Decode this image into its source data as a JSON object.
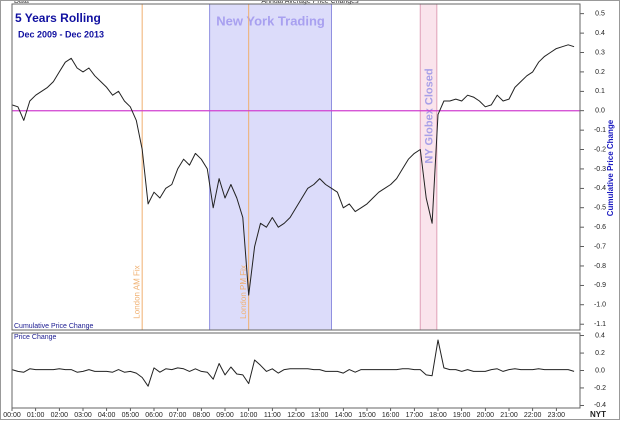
{
  "chart_data": [
    {
      "type": "line",
      "header_left": "Data",
      "header_center": "Annual Average Price Changes",
      "title": "5 Years Rolling",
      "subtitle": "Dec 2009 - Dec 2013",
      "y_label": "Cumulative Price Change",
      "x": [
        0,
        0.25,
        0.5,
        0.75,
        1,
        1.25,
        1.5,
        1.75,
        2,
        2.25,
        2.5,
        2.75,
        3,
        3.25,
        3.5,
        3.75,
        4,
        4.25,
        4.5,
        4.75,
        5,
        5.25,
        5.5,
        5.75,
        6,
        6.25,
        6.5,
        6.75,
        7,
        7.25,
        7.5,
        7.75,
        8,
        8.25,
        8.5,
        8.75,
        9,
        9.25,
        9.5,
        9.75,
        10,
        10.25,
        10.5,
        10.75,
        11,
        11.25,
        11.5,
        11.75,
        12,
        12.25,
        12.5,
        12.75,
        13,
        13.25,
        13.5,
        13.75,
        14,
        14.25,
        14.5,
        14.75,
        15,
        15.25,
        15.5,
        15.75,
        16,
        16.25,
        16.5,
        16.75,
        17,
        17.25,
        17.5,
        17.75,
        18,
        18.25,
        18.5,
        18.75,
        19,
        19.25,
        19.5,
        19.75,
        20,
        20.25,
        20.5,
        20.75,
        21,
        21.25,
        21.5,
        21.75,
        22,
        22.25,
        22.5,
        22.75,
        23,
        23.25,
        23.5,
        23.75
      ],
      "values": [
        0.03,
        0.02,
        -0.05,
        0.05,
        0.08,
        0.1,
        0.12,
        0.15,
        0.2,
        0.25,
        0.27,
        0.22,
        0.2,
        0.22,
        0.18,
        0.15,
        0.12,
        0.08,
        0.1,
        0.05,
        0.02,
        -0.05,
        -0.2,
        -0.48,
        -0.42,
        -0.45,
        -0.4,
        -0.38,
        -0.3,
        -0.25,
        -0.28,
        -0.22,
        -0.25,
        -0.3,
        -0.5,
        -0.35,
        -0.45,
        -0.38,
        -0.45,
        -0.55,
        -0.95,
        -0.7,
        -0.58,
        -0.6,
        -0.55,
        -0.6,
        -0.58,
        -0.55,
        -0.5,
        -0.45,
        -0.4,
        -0.38,
        -0.35,
        -0.38,
        -0.4,
        -0.42,
        -0.5,
        -0.48,
        -0.52,
        -0.5,
        -0.48,
        -0.45,
        -0.42,
        -0.4,
        -0.38,
        -0.35,
        -0.3,
        -0.25,
        -0.22,
        -0.2,
        -0.45,
        -0.58,
        -0.02,
        0.05,
        0.05,
        0.06,
        0.05,
        0.08,
        0.07,
        0.05,
        0.02,
        0.03,
        0.08,
        0.05,
        0.06,
        0.12,
        0.15,
        0.18,
        0.2,
        0.25,
        0.28,
        0.3,
        0.32,
        0.33,
        0.34,
        0.33
      ],
      "color": "#222222",
      "xlim": [
        0,
        24
      ],
      "ylim": [
        -1.13,
        0.55
      ],
      "yticks": [
        0.5,
        0.4,
        0.3,
        0.2,
        0.1,
        {
          "value": 0,
          "label": "0.0"
        },
        -0.1,
        -0.2,
        -0.3,
        -0.4,
        -0.5,
        -0.6,
        -0.7,
        -0.8,
        -0.9,
        {
          "value": -1,
          "label": "-1.0"
        },
        -1.1
      ],
      "hline": 0,
      "hline_color": "#d040d0",
      "regions": [
        {
          "label": "New York Trading",
          "x": [
            8.35,
            13.5
          ],
          "color": "#dcdcfa",
          "edge_color": "#9090e0",
          "label_color": "#a8a0f0"
        },
        {
          "label": "NY Globex Closed",
          "x": [
            17.25,
            17.95
          ],
          "color": "#fae4ec",
          "edge_color": "#e0a0b8",
          "label_color": "#a8a0e8"
        }
      ],
      "vlines": [
        {
          "label": "London AM Fix",
          "x": 5.5,
          "color": "#f0b070"
        },
        {
          "label": "London PM Fix",
          "x": 10,
          "color": "#f0b070"
        }
      ]
    },
    {
      "type": "line",
      "caption": "Cumulative Price Change",
      "title": "Price Change",
      "x_label": "NYT",
      "x": [
        0,
        0.25,
        0.5,
        0.75,
        1,
        1.25,
        1.5,
        1.75,
        2,
        2.25,
        2.5,
        2.75,
        3,
        3.25,
        3.5,
        3.75,
        4,
        4.25,
        4.5,
        4.75,
        5,
        5.25,
        5.5,
        5.75,
        6,
        6.25,
        6.5,
        6.75,
        7,
        7.25,
        7.5,
        7.75,
        8,
        8.25,
        8.5,
        8.75,
        9,
        9.25,
        9.5,
        9.75,
        10,
        10.25,
        10.5,
        10.75,
        11,
        11.25,
        11.5,
        11.75,
        12,
        12.25,
        12.5,
        12.75,
        13,
        13.25,
        13.5,
        13.75,
        14,
        14.25,
        14.5,
        14.75,
        15,
        15.25,
        15.5,
        15.75,
        16,
        16.25,
        16.5,
        16.75,
        17,
        17.25,
        17.5,
        17.75,
        18,
        18.25,
        18.5,
        18.75,
        19,
        19.25,
        19.5,
        19.75,
        20,
        20.25,
        20.5,
        20.75,
        21,
        21.25,
        21.5,
        21.75,
        22,
        22.25,
        22.5,
        22.75,
        23,
        23.25,
        23.5,
        23.75
      ],
      "values": [
        0.01,
        -0.01,
        -0.02,
        0.02,
        0.01,
        0.01,
        0.01,
        0.01,
        0.02,
        0.01,
        0.01,
        -0.02,
        -0.01,
        0.01,
        -0.01,
        -0.01,
        -0.01,
        -0.02,
        0.01,
        -0.02,
        -0.01,
        -0.03,
        -0.08,
        -0.18,
        0.03,
        -0.02,
        0.02,
        0.01,
        0.03,
        0.02,
        -0.01,
        0.02,
        -0.01,
        -0.02,
        -0.1,
        0.08,
        -0.05,
        0.04,
        -0.04,
        -0.05,
        -0.15,
        0.12,
        0.06,
        -0.01,
        0.02,
        -0.03,
        0.01,
        0.02,
        0.02,
        0.02,
        0.02,
        0.01,
        0.01,
        -0.01,
        -0.01,
        -0.01,
        -0.03,
        0.01,
        -0.02,
        0.01,
        0.01,
        0.01,
        0.01,
        0.01,
        0.01,
        0.01,
        0.02,
        0.02,
        0.01,
        0.01,
        -0.05,
        -0.06,
        0.35,
        0.03,
        0.01,
        0.01,
        -0.01,
        0.01,
        -0.01,
        -0.01,
        -0.01,
        0.01,
        0.02,
        -0.01,
        0.01,
        0.02,
        0.01,
        0.01,
        0.01,
        0.02,
        0.01,
        0.01,
        0.01,
        0.01,
        0.01,
        -0.01
      ],
      "color": "#222222",
      "xlim": [
        0,
        24
      ],
      "ylim": [
        -0.43,
        0.43
      ],
      "yticks": [
        0.4,
        0.2,
        {
          "value": 0,
          "label": "0.0"
        },
        -0.2,
        -0.4
      ],
      "xticks": [
        {
          "value": 0,
          "label": "00:00"
        },
        {
          "value": 1,
          "label": "01:00"
        },
        {
          "value": 2,
          "label": "02:00"
        },
        {
          "value": 3,
          "label": "03:00"
        },
        {
          "value": 4,
          "label": "04:00"
        },
        {
          "value": 5,
          "label": "05:00"
        },
        {
          "value": 6,
          "label": "06:00"
        },
        {
          "value": 7,
          "label": "07:00"
        },
        {
          "value": 8,
          "label": "08:00"
        },
        {
          "value": 9,
          "label": "09:00"
        },
        {
          "value": 10,
          "label": "10:00"
        },
        {
          "value": 11,
          "label": "11:00"
        },
        {
          "value": 12,
          "label": "12:00"
        },
        {
          "value": 13,
          "label": "13:00"
        },
        {
          "value": 14,
          "label": "14:00"
        },
        {
          "value": 15,
          "label": "15:00"
        },
        {
          "value": 16,
          "label": "16:00"
        },
        {
          "value": 17,
          "label": "17:00"
        },
        {
          "value": 18,
          "label": "18:00"
        },
        {
          "value": 19,
          "label": "19:00"
        },
        {
          "value": 20,
          "label": "20:00"
        },
        {
          "value": 21,
          "label": "21:00"
        },
        {
          "value": 22,
          "label": "22:00"
        },
        {
          "value": 23,
          "label": "23:00"
        }
      ]
    }
  ]
}
